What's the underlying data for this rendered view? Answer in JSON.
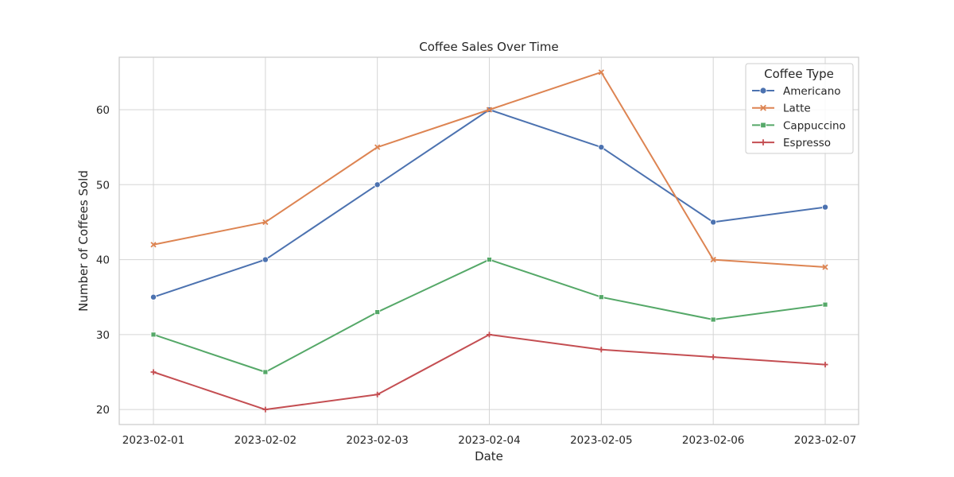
{
  "chart_data": {
    "type": "line",
    "title": "Coffee Sales Over Time",
    "xlabel": "Date",
    "ylabel": "Number of Coffees Sold",
    "categories": [
      "2023-02-01",
      "2023-02-02",
      "2023-02-03",
      "2023-02-04",
      "2023-02-05",
      "2023-02-06",
      "2023-02-07"
    ],
    "ylim": [
      18,
      67
    ],
    "yticks": [
      20,
      30,
      40,
      50,
      60
    ],
    "grid": true,
    "legend": {
      "title": "Coffee Type",
      "placement": "top-right"
    },
    "series": [
      {
        "name": "Americano",
        "color": "#4c72b0",
        "marker": "circle",
        "values": [
          35,
          40,
          50,
          60,
          55,
          45,
          47
        ]
      },
      {
        "name": "Latte",
        "color": "#dd8452",
        "marker": "x",
        "values": [
          42,
          45,
          55,
          60,
          65,
          40,
          39
        ]
      },
      {
        "name": "Cappuccino",
        "color": "#55a868",
        "marker": "square",
        "values": [
          30,
          25,
          33,
          40,
          35,
          32,
          34
        ]
      },
      {
        "name": "Espresso",
        "color": "#c44e52",
        "marker": "plus",
        "values": [
          25,
          20,
          22,
          30,
          28,
          27,
          26
        ]
      }
    ]
  }
}
